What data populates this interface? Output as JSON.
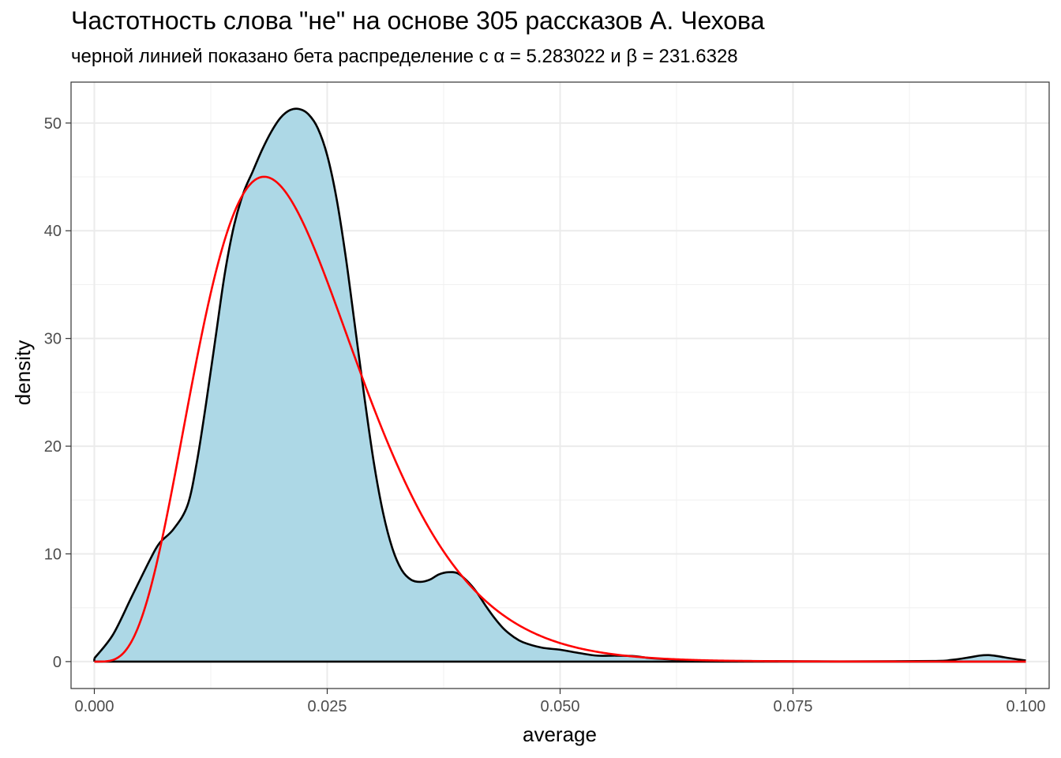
{
  "chart_data": {
    "type": "area",
    "title": "Частотность слова \"не\" на основе 305 рассказов А. Чехова",
    "subtitle": "черной линией показано бета распределение с α = 5.283022 и β = 231.6328",
    "xlabel": "average",
    "ylabel": "density",
    "xlim": [
      -0.0025,
      0.1025
    ],
    "ylim": [
      -2.5,
      53.8
    ],
    "x_ticks": [
      0.0,
      0.025,
      0.05,
      0.075,
      0.1
    ],
    "x_tick_labels": [
      "0.000",
      "0.025",
      "0.050",
      "0.075",
      "0.100"
    ],
    "y_ticks": [
      0,
      10,
      20,
      30,
      40,
      50
    ],
    "y_tick_labels": [
      "0",
      "10",
      "20",
      "30",
      "40",
      "50"
    ],
    "grid": true,
    "series": [
      {
        "kind": "density-fill",
        "fill": "#add8e6",
        "stroke": "#000000",
        "x": [
          0.0,
          0.002,
          0.004,
          0.006,
          0.007,
          0.0085,
          0.01,
          0.011,
          0.012,
          0.013,
          0.014,
          0.015,
          0.016,
          0.017,
          0.018,
          0.019,
          0.02,
          0.021,
          0.022,
          0.023,
          0.024,
          0.025,
          0.026,
          0.027,
          0.028,
          0.029,
          0.03,
          0.031,
          0.032,
          0.033,
          0.034,
          0.035,
          0.036,
          0.037,
          0.038,
          0.039,
          0.04,
          0.041,
          0.042,
          0.043,
          0.044,
          0.045,
          0.046,
          0.048,
          0.05,
          0.052,
          0.054,
          0.056,
          0.058,
          0.06,
          0.065,
          0.07,
          0.08,
          0.09,
          0.092,
          0.094,
          0.095,
          0.096,
          0.097,
          0.098,
          0.1
        ],
        "y": [
          0.3,
          2.5,
          6.0,
          9.5,
          11.0,
          12.3,
          14.5,
          18.5,
          24.0,
          30.0,
          36.0,
          40.5,
          43.5,
          45.5,
          47.5,
          49.2,
          50.5,
          51.2,
          51.3,
          50.8,
          49.5,
          47.0,
          43.0,
          37.5,
          31.0,
          24.5,
          18.5,
          13.8,
          10.5,
          8.5,
          7.6,
          7.4,
          7.6,
          8.1,
          8.3,
          8.2,
          7.5,
          6.5,
          5.2,
          4.0,
          3.0,
          2.3,
          1.8,
          1.3,
          1.1,
          0.8,
          0.55,
          0.55,
          0.5,
          0.3,
          0.1,
          0.05,
          0.02,
          0.05,
          0.15,
          0.4,
          0.55,
          0.6,
          0.5,
          0.35,
          0.1
        ]
      },
      {
        "kind": "beta-curve",
        "stroke": "#ff0000",
        "alpha": 5.283022,
        "beta": 231.6328
      }
    ]
  }
}
